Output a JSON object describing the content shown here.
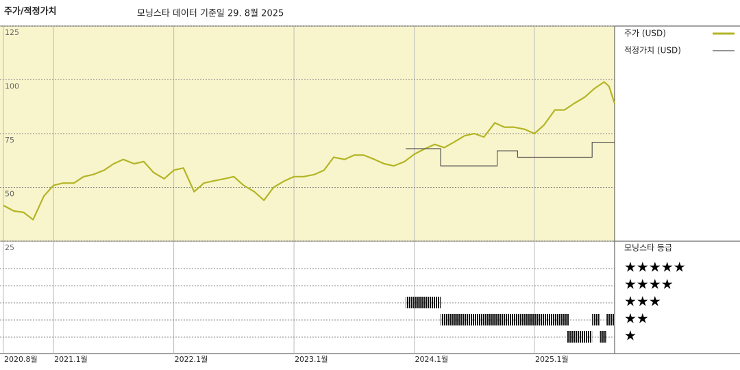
{
  "header": {
    "title": "주가/적정가치",
    "subtitle": "모닝스타 데이터 기준일 29. 8월 2025"
  },
  "chart_data": {
    "type": "line",
    "xlim": [
      2020.583,
      2025.667
    ],
    "xticks": [
      {
        "value": 2020.583,
        "label": "2020.8월"
      },
      {
        "value": 2021.0,
        "label": "2021.1월"
      },
      {
        "value": 2022.0,
        "label": "2022.1월"
      },
      {
        "value": 2023.0,
        "label": "2023.1월"
      },
      {
        "value": 2024.0,
        "label": "2024.1월"
      },
      {
        "value": 2025.0,
        "label": "2025.1월"
      }
    ],
    "ylim": [
      25,
      125
    ],
    "yticks": [
      25,
      50,
      75,
      100,
      125
    ],
    "grid": true,
    "background": "#f8f4cc",
    "series": [
      {
        "name": "주가 (USD)",
        "color": "#b3b524",
        "x": [
          2020.583,
          2020.67,
          2020.75,
          2020.83,
          2020.92,
          2021.0,
          2021.08,
          2021.17,
          2021.25,
          2021.33,
          2021.42,
          2021.5,
          2021.58,
          2021.67,
          2021.75,
          2021.83,
          2021.92,
          2022.0,
          2022.08,
          2022.17,
          2022.25,
          2022.33,
          2022.42,
          2022.5,
          2022.58,
          2022.67,
          2022.75,
          2022.83,
          2022.92,
          2023.0,
          2023.08,
          2023.17,
          2023.25,
          2023.33,
          2023.42,
          2023.5,
          2023.58,
          2023.67,
          2023.75,
          2023.83,
          2023.92,
          2024.0,
          2024.08,
          2024.17,
          2024.25,
          2024.33,
          2024.42,
          2024.5,
          2024.58,
          2024.67,
          2024.75,
          2024.83,
          2024.92,
          2025.0,
          2025.08,
          2025.17,
          2025.25,
          2025.33,
          2025.42,
          2025.5,
          2025.58,
          2025.62,
          2025.667
        ],
        "values": [
          41.6,
          39,
          38.4,
          35,
          46,
          51,
          52,
          52,
          55,
          56,
          58,
          61,
          63,
          61,
          62,
          57,
          54,
          58,
          59,
          48,
          52,
          53,
          54,
          55,
          51,
          48,
          44,
          50,
          53,
          55,
          55,
          56,
          58,
          64,
          63,
          65,
          65,
          63,
          61,
          60,
          62,
          65.4,
          67.7,
          70,
          68.5,
          71,
          74,
          75,
          73.4,
          80,
          78,
          78,
          77,
          75,
          79,
          86,
          86,
          89,
          92,
          96,
          99,
          97,
          89
        ]
      },
      {
        "name": "적정가치 (USD)",
        "color": "#555555",
        "x": [
          2023.93,
          2024.22,
          2024.22,
          2024.69,
          2024.69,
          2024.86,
          2024.86,
          2025.48,
          2025.48,
          2025.667
        ],
        "values": [
          68,
          68,
          60,
          60,
          67,
          67,
          64,
          64,
          71,
          71
        ]
      }
    ],
    "rating_panel": {
      "title": "모닝스타 등급",
      "levels": [
        "★★★★★",
        "★★★★",
        "★★★",
        "★★",
        "★"
      ],
      "level_values": [
        5,
        4,
        3,
        2,
        1
      ],
      "periods": [
        {
          "stars": 3,
          "from": 2023.93,
          "to": 2024.22
        },
        {
          "stars": 2,
          "from": 2024.22,
          "to": 2025.29
        },
        {
          "stars": 1,
          "from": 2025.27,
          "to": 2025.48
        },
        {
          "stars": 2,
          "from": 2025.48,
          "to": 2025.54
        },
        {
          "stars": 1,
          "from": 2025.54,
          "to": 2025.6
        },
        {
          "stars": 2,
          "from": 2025.6,
          "to": 2025.667
        }
      ]
    }
  }
}
